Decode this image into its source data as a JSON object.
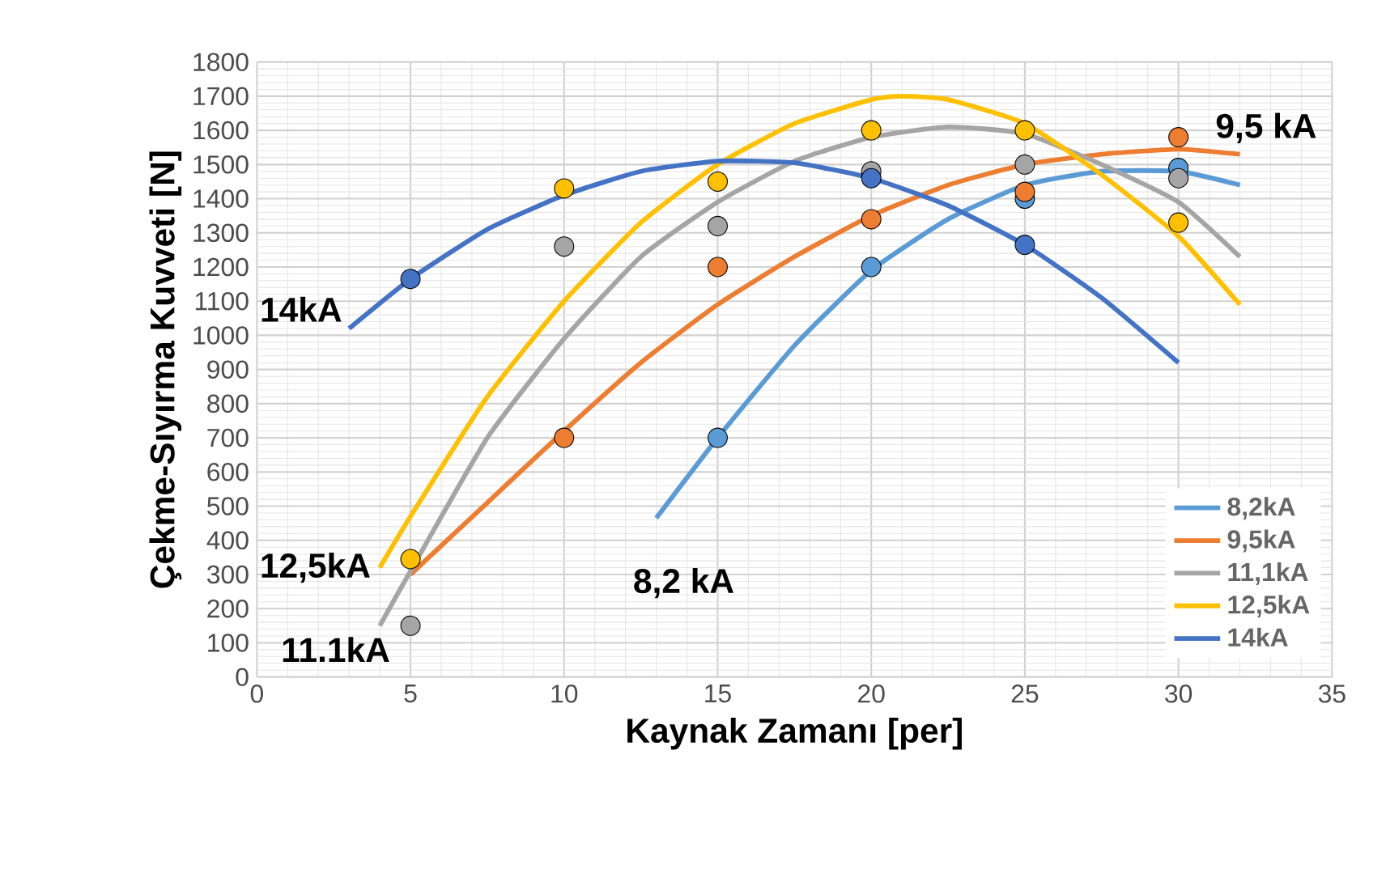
{
  "chart_data": {
    "type": "scatter",
    "xlabel": "Kaynak Zamanı [per]",
    "ylabel": "Çekme-Sıyırma Kuvveti [N]",
    "xlim": [
      0,
      35
    ],
    "ylim": [
      0,
      1800
    ],
    "xticks": [
      0,
      5,
      10,
      15,
      20,
      25,
      30,
      35
    ],
    "yticks": [
      0,
      100,
      200,
      300,
      400,
      500,
      600,
      700,
      800,
      900,
      1000,
      1100,
      1200,
      1300,
      1400,
      1500,
      1600,
      1700,
      1800
    ],
    "grid": true,
    "legend": "bottom right",
    "marker": "circle",
    "series": [
      {
        "color": "#5b9bd5",
        "x": [
          15,
          20,
          25,
          30
        ],
        "values": [
          700,
          1200,
          1400,
          1490
        ]
      },
      {
        "color": "#ed7d31",
        "x": [
          10,
          15,
          20,
          25,
          30
        ],
        "values": [
          700,
          1200,
          1340,
          1420,
          1580
        ]
      },
      {
        "color": "#a5a5a5",
        "x": [
          5,
          10,
          15,
          20,
          25,
          30
        ],
        "values": [
          150,
          1260,
          1320,
          1480,
          1500,
          1460
        ]
      },
      {
        "color": "#ffc000",
        "x": [
          5,
          10,
          15,
          20,
          25,
          30
        ],
        "values": [
          345,
          1430,
          1450,
          1600,
          1600,
          1330
        ]
      },
      {
        "color": "#4472c4",
        "x": [
          5,
          20,
          25
        ],
        "values": [
          1165,
          1460,
          1265
        ]
      },
      {
        "type": "line",
        "name": "8,2kA",
        "color": "#5b9bd5",
        "marker": "none",
        "x": [
          13,
          15,
          17.5,
          20,
          22.5,
          25,
          27.5,
          30,
          32
        ],
        "values": [
          465,
          700,
          970,
          1190,
          1340,
          1440,
          1480,
          1480,
          1440
        ]
      },
      {
        "type": "line",
        "name": "9,5kA",
        "color": "#ed7d31",
        "marker": "none",
        "x": [
          5,
          7.5,
          10,
          12.5,
          15,
          17.5,
          20,
          22.5,
          25,
          27.5,
          30,
          32
        ],
        "values": [
          300,
          510,
          720,
          920,
          1090,
          1230,
          1350,
          1440,
          1500,
          1530,
          1545,
          1530
        ]
      },
      {
        "type": "line",
        "name": "11,1kA",
        "color": "#a5a5a5",
        "marker": "none",
        "x": [
          4,
          5,
          7.5,
          10,
          12.5,
          15,
          17.5,
          20,
          22.5,
          25,
          27.5,
          30,
          32
        ],
        "values": [
          150,
          310,
          700,
          990,
          1230,
          1390,
          1510,
          1580,
          1610,
          1590,
          1500,
          1390,
          1230
        ]
      },
      {
        "type": "line",
        "name": "12,5kA",
        "color": "#ffc000",
        "marker": "none",
        "x": [
          4,
          5,
          7.5,
          10,
          12.5,
          15,
          17.5,
          20,
          21,
          22.5,
          25,
          27.5,
          30,
          32
        ],
        "values": [
          320,
          470,
          820,
          1100,
          1330,
          1500,
          1620,
          1690,
          1700,
          1690,
          1620,
          1470,
          1290,
          1090
        ]
      },
      {
        "type": "line",
        "name": "14kA",
        "color": "#4472c4",
        "marker": "none",
        "x": [
          3,
          5,
          7.5,
          10,
          12.5,
          15,
          17.5,
          20,
          22.5,
          25,
          27.5,
          30
        ],
        "values": [
          1020,
          1165,
          1310,
          1410,
          1480,
          1510,
          1505,
          1460,
          1380,
          1265,
          1110,
          920
        ]
      }
    ],
    "annotations": [
      {
        "text": "14kA",
        "x": 3,
        "y": 1020
      },
      {
        "text": "12,5kA",
        "x": 4,
        "y": 320
      },
      {
        "text": "11.1kA",
        "x": 4,
        "y": 150
      },
      {
        "text": "8,2 kA",
        "x": 13,
        "y": 465
      },
      {
        "text": "9,5 kA",
        "x": 30,
        "y": 1580
      }
    ]
  }
}
